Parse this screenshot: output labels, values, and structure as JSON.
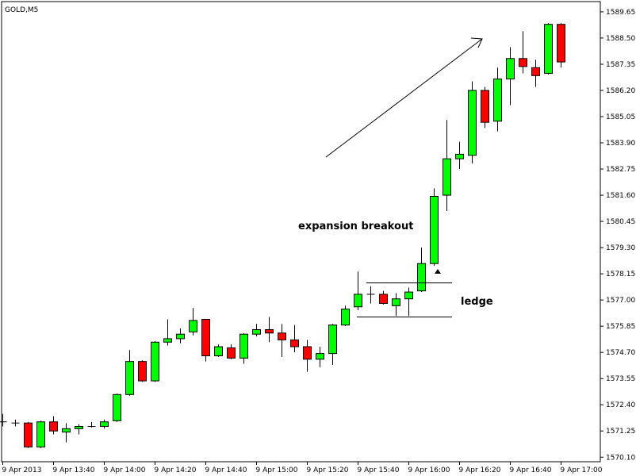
{
  "chart_data": {
    "type": "candlestick",
    "symbol_label": "GOLD,M5",
    "colors": {
      "bull": "#00ff00",
      "bear": "#ff0000",
      "outline": "#000000",
      "background": "#ffffff"
    },
    "grid": false,
    "ylim": [
      1569.9,
      1590.1
    ],
    "y_ticks": [
      "1589.65",
      "1588.50",
      "1587.35",
      "1586.20",
      "1585.05",
      "1583.90",
      "1582.75",
      "1581.60",
      "1580.45",
      "1579.30",
      "1578.15",
      "1577.00",
      "1575.85",
      "1574.70",
      "1573.55",
      "1572.40",
      "1571.25",
      "1570.10"
    ],
    "x_ticks": [
      "9 Apr 2013",
      "9 Apr 13:40",
      "9 Apr 14:00",
      "9 Apr 14:20",
      "9 Apr 14:40",
      "9 Apr 15:00",
      "9 Apr 15:20",
      "9 Apr 15:40",
      "9 Apr 16:00",
      "9 Apr 16:20",
      "9 Apr 16:40",
      "9 Apr 17:00"
    ],
    "candles": [
      {
        "o": 1571.65,
        "h": 1572.0,
        "l": 1571.45,
        "c": 1571.6
      },
      {
        "o": 1571.6,
        "h": 1571.75,
        "l": 1571.45,
        "c": 1571.6
      },
      {
        "o": 1571.6,
        "h": 1571.65,
        "l": 1570.5,
        "c": 1570.55
      },
      {
        "o": 1570.55,
        "h": 1571.7,
        "l": 1570.5,
        "c": 1571.65
      },
      {
        "o": 1571.65,
        "h": 1571.9,
        "l": 1571.1,
        "c": 1571.25
      },
      {
        "o": 1571.2,
        "h": 1571.6,
        "l": 1570.75,
        "c": 1571.35
      },
      {
        "o": 1571.35,
        "h": 1571.55,
        "l": 1571.1,
        "c": 1571.45
      },
      {
        "o": 1571.45,
        "h": 1571.65,
        "l": 1571.4,
        "c": 1571.45
      },
      {
        "o": 1571.45,
        "h": 1571.75,
        "l": 1571.35,
        "c": 1571.65
      },
      {
        "o": 1571.7,
        "h": 1572.9,
        "l": 1571.65,
        "c": 1572.85
      },
      {
        "o": 1572.85,
        "h": 1574.8,
        "l": 1572.8,
        "c": 1574.3
      },
      {
        "o": 1574.3,
        "h": 1574.35,
        "l": 1573.4,
        "c": 1573.45
      },
      {
        "o": 1573.45,
        "h": 1575.2,
        "l": 1573.4,
        "c": 1575.15
      },
      {
        "o": 1575.15,
        "h": 1576.15,
        "l": 1575.0,
        "c": 1575.3
      },
      {
        "o": 1575.3,
        "h": 1575.75,
        "l": 1575.1,
        "c": 1575.5
      },
      {
        "o": 1575.6,
        "h": 1576.65,
        "l": 1575.45,
        "c": 1576.1
      },
      {
        "o": 1576.15,
        "h": 1576.15,
        "l": 1574.3,
        "c": 1574.55
      },
      {
        "o": 1574.55,
        "h": 1575.05,
        "l": 1574.5,
        "c": 1574.95
      },
      {
        "o": 1574.9,
        "h": 1575.05,
        "l": 1574.4,
        "c": 1574.45
      },
      {
        "o": 1574.45,
        "h": 1575.55,
        "l": 1574.2,
        "c": 1575.5
      },
      {
        "o": 1575.5,
        "h": 1575.95,
        "l": 1575.4,
        "c": 1575.7
      },
      {
        "o": 1575.7,
        "h": 1576.25,
        "l": 1575.15,
        "c": 1575.55
      },
      {
        "o": 1575.55,
        "h": 1575.95,
        "l": 1574.5,
        "c": 1575.25
      },
      {
        "o": 1575.25,
        "h": 1575.9,
        "l": 1574.7,
        "c": 1574.95
      },
      {
        "o": 1574.95,
        "h": 1575.25,
        "l": 1573.85,
        "c": 1574.4
      },
      {
        "o": 1574.4,
        "h": 1574.95,
        "l": 1574.05,
        "c": 1574.65
      },
      {
        "o": 1574.65,
        "h": 1575.95,
        "l": 1574.15,
        "c": 1575.9
      },
      {
        "o": 1575.9,
        "h": 1576.75,
        "l": 1575.85,
        "c": 1576.6
      },
      {
        "o": 1576.7,
        "h": 1578.25,
        "l": 1576.55,
        "c": 1577.25
      },
      {
        "o": 1577.25,
        "h": 1577.6,
        "l": 1576.85,
        "c": 1577.25
      },
      {
        "o": 1577.25,
        "h": 1577.4,
        "l": 1576.8,
        "c": 1576.85
      },
      {
        "o": 1576.75,
        "h": 1577.3,
        "l": 1576.3,
        "c": 1577.05
      },
      {
        "o": 1577.05,
        "h": 1577.55,
        "l": 1576.3,
        "c": 1577.35
      },
      {
        "o": 1577.4,
        "h": 1579.3,
        "l": 1577.35,
        "c": 1578.6
      },
      {
        "o": 1578.6,
        "h": 1581.9,
        "l": 1578.5,
        "c": 1581.55
      },
      {
        "o": 1581.6,
        "h": 1584.9,
        "l": 1580.9,
        "c": 1583.2
      },
      {
        "o": 1583.2,
        "h": 1583.95,
        "l": 1582.75,
        "c": 1583.4
      },
      {
        "o": 1583.35,
        "h": 1586.6,
        "l": 1583.0,
        "c": 1586.2
      },
      {
        "o": 1586.2,
        "h": 1586.35,
        "l": 1584.55,
        "c": 1584.8
      },
      {
        "o": 1584.85,
        "h": 1587.2,
        "l": 1584.4,
        "c": 1586.7
      },
      {
        "o": 1586.7,
        "h": 1588.1,
        "l": 1585.55,
        "c": 1587.6
      },
      {
        "o": 1587.6,
        "h": 1588.8,
        "l": 1586.95,
        "c": 1587.25
      },
      {
        "o": 1587.2,
        "h": 1587.55,
        "l": 1586.35,
        "c": 1586.85
      },
      {
        "o": 1586.95,
        "h": 1589.15,
        "l": 1586.9,
        "c": 1589.1
      },
      {
        "o": 1589.1,
        "h": 1589.15,
        "l": 1587.2,
        "c": 1587.45
      }
    ],
    "annotations": {
      "breakout_label": "expansion breakout",
      "ledge_label": "ledge",
      "ledge_top_price": 1577.75,
      "ledge_bottom_price": 1576.25
    }
  }
}
